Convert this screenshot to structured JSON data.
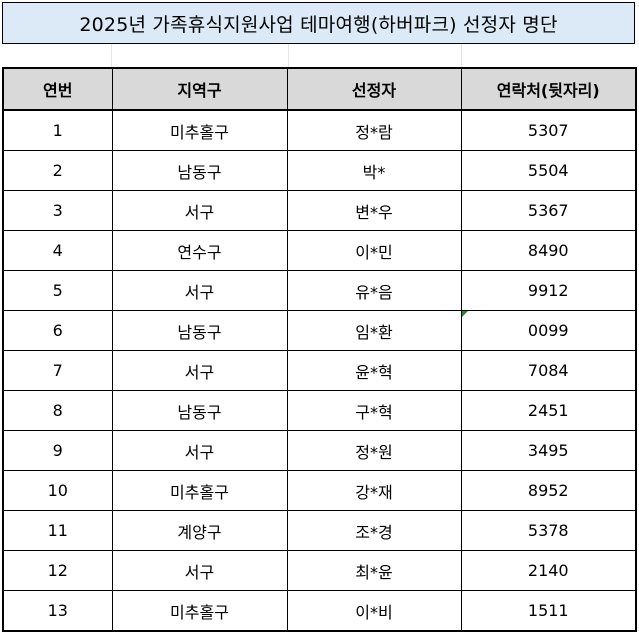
{
  "title": "2025년 가족휴식지원사업 테마여행(하버파크) 선정자 명단",
  "headers": [
    "연번",
    "지역구",
    "선정자",
    "연락처(뒷자리)"
  ],
  "rows": [
    [
      "1",
      "미추홀구",
      "정*람",
      "5307"
    ],
    [
      "2",
      "남동구",
      "박*",
      "5504"
    ],
    [
      "3",
      "서구",
      "변*우",
      "5367"
    ],
    [
      "4",
      "연수구",
      "이*민",
      "8490"
    ],
    [
      "5",
      "서구",
      "유*음",
      "9912"
    ],
    [
      "6",
      "남동구",
      "임*환",
      "0099"
    ],
    [
      "7",
      "서구",
      "윤*혁",
      "7084"
    ],
    [
      "8",
      "남동구",
      "구*혁",
      "2451"
    ],
    [
      "9",
      "서구",
      "정*원",
      "3495"
    ],
    [
      "10",
      "미추홀구",
      "강*재",
      "8952"
    ],
    [
      "11",
      "계양구",
      "조*경",
      "5378"
    ],
    [
      "12",
      "서구",
      "최*윤",
      "2140"
    ],
    [
      "13",
      "미추홀구",
      "이*비",
      "1511"
    ]
  ],
  "colors": {
    "title_bg": "#dbeaf6",
    "header_bg": "#d9d9d9",
    "comment_marker": "#1f8a3a"
  }
}
